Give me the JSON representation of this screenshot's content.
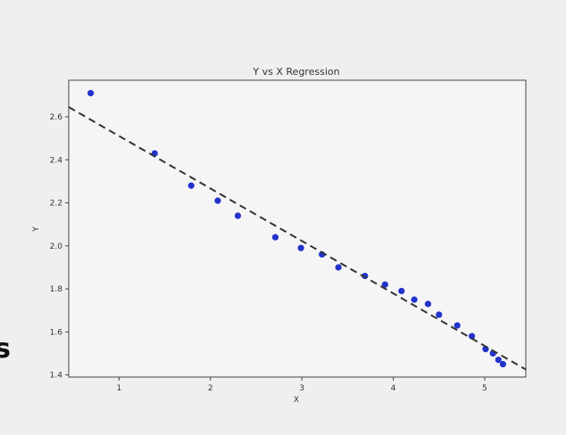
{
  "edge_text": "s",
  "chart_data": {
    "type": "scatter",
    "title": "Y vs X Regression",
    "xlabel": "X",
    "ylabel": "Y",
    "xlim": [
      0.45,
      5.45
    ],
    "ylim": [
      1.39,
      2.77
    ],
    "xticks": [
      1,
      2,
      3,
      4,
      5
    ],
    "yticks": [
      1.4,
      1.6,
      1.8,
      2.0,
      2.2,
      2.4,
      2.6
    ],
    "xtick_labels": [
      "1",
      "2",
      "3",
      "4",
      "5"
    ],
    "ytick_labels": [
      "1.4",
      "1.6",
      "1.8",
      "2.0",
      "2.2",
      "2.4",
      "2.6"
    ],
    "grid": false,
    "point_color": "#2233cc",
    "line_color": "#333333",
    "points": {
      "x": [
        0.69,
        1.39,
        1.79,
        2.08,
        2.3,
        2.71,
        2.99,
        3.22,
        3.4,
        3.69,
        3.91,
        4.09,
        4.23,
        4.38,
        4.5,
        4.7,
        4.86,
        5.01,
        5.09,
        5.15,
        5.2
      ],
      "y": [
        2.71,
        2.43,
        2.28,
        2.21,
        2.14,
        2.04,
        1.99,
        1.96,
        1.9,
        1.86,
        1.82,
        1.79,
        1.75,
        1.73,
        1.68,
        1.63,
        1.58,
        1.52,
        1.5,
        1.47,
        1.45
      ]
    },
    "fit_line": {
      "style": "dashed",
      "x": [
        0.45,
        5.45
      ],
      "y": [
        2.645,
        1.425
      ]
    }
  }
}
